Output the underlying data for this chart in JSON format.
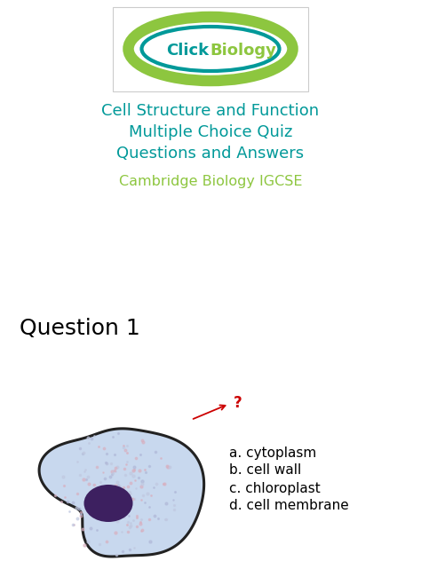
{
  "bg_color": "#ffffff",
  "title_lines": [
    "Cell Structure and Function",
    "Multiple Choice Quiz",
    "Questions and Answers"
  ],
  "title_color": "#009999",
  "subtitle": "Cambridge Biology IGCSE",
  "subtitle_color": "#8dc63f",
  "question_label": "Question 1",
  "question_color": "#000000",
  "logo_text_click": "Click",
  "logo_text_biology": "Biology",
  "logo_click_color": "#009999",
  "logo_biology_color": "#8dc63f",
  "logo_outer_color": "#8dc63f",
  "logo_inner_color": "#009999",
  "logo_box_edge": "#cccccc",
  "cell_fill": "#c8d8ee",
  "cell_outline": "#222222",
  "nucleus_fill": "#3d2060",
  "answer_options": [
    "a. cytoplasm",
    "b. cell wall",
    "c. chloroplast",
    "d. cell membrane"
  ],
  "answer_color": "#000000",
  "arrow_color": "#cc0000",
  "question_mark_color": "#cc0000",
  "fig_w": 4.74,
  "fig_h": 6.32,
  "dpi": 100
}
